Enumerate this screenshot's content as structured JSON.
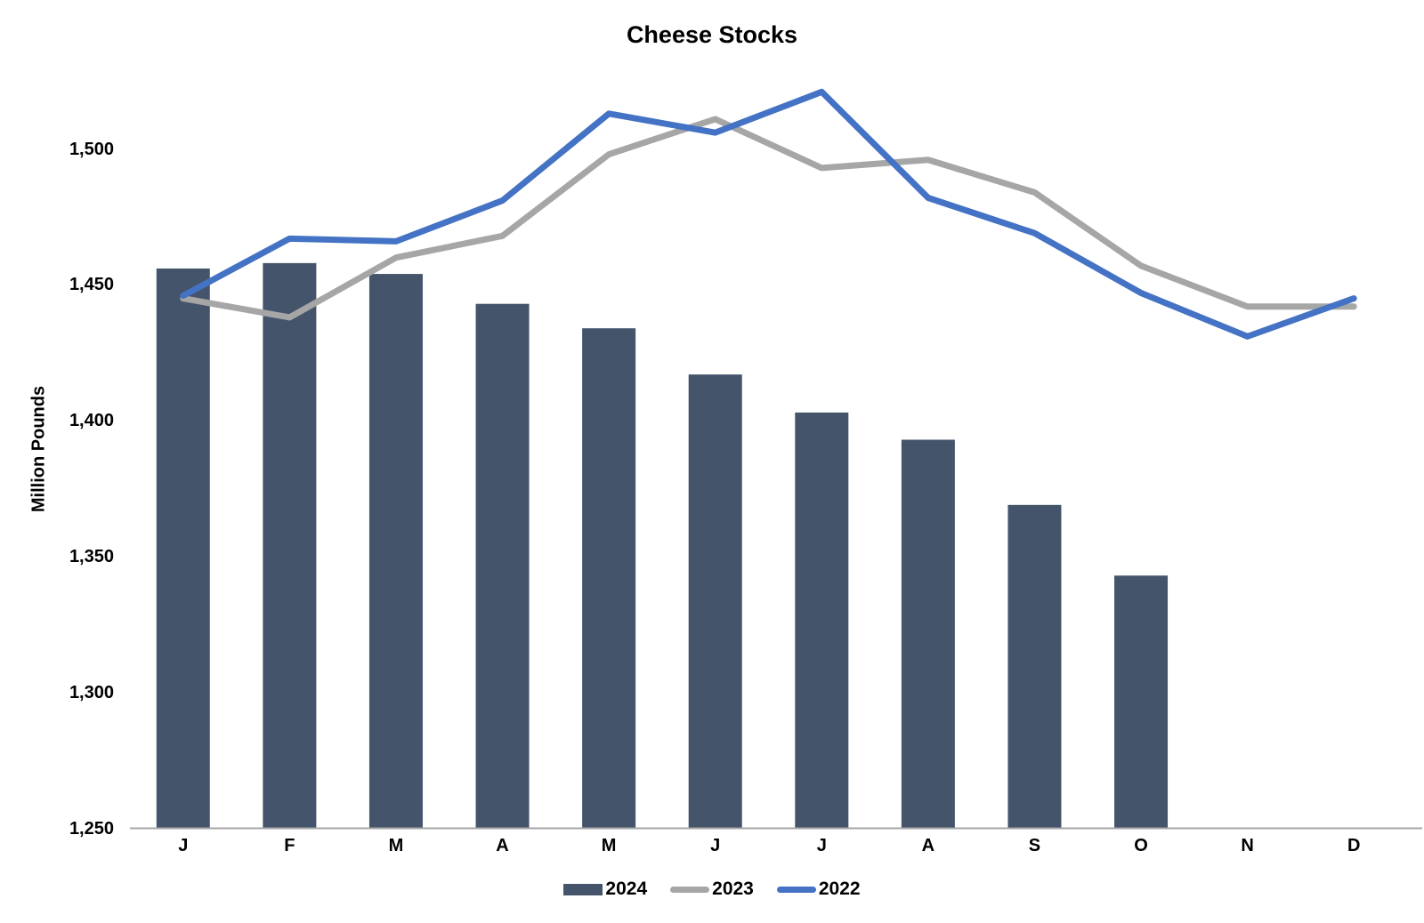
{
  "title": "Cheese Stocks",
  "chart_data": {
    "type": "bar+line combo",
    "title": "Cheese Stocks",
    "xlabel": "",
    "ylabel": "Million Pounds",
    "categories": [
      "J",
      "F",
      "M",
      "A",
      "M",
      "J",
      "J",
      "A",
      "S",
      "O",
      "N",
      "D"
    ],
    "yticks": [
      1250,
      1300,
      1350,
      1400,
      1450,
      1500
    ],
    "ytick_labels": [
      "1,250",
      "1,300",
      "1,350",
      "1,400",
      "1,450",
      "1,500"
    ],
    "ylim": [
      1250,
      1530
    ],
    "grid": "off",
    "legend_position": "bottom",
    "axis_color": "#A6A6A6",
    "series": [
      {
        "name": "2024",
        "type": "bar",
        "color": "#44546A",
        "values": [
          1456,
          1458,
          1454,
          1443,
          1434,
          1417,
          1403,
          1393,
          1369,
          1343,
          null,
          null
        ]
      },
      {
        "name": "2023",
        "type": "line",
        "color": "#A6A6A6",
        "values": [
          1445,
          1438,
          1460,
          1468,
          1498,
          1511,
          1493,
          1496,
          1484,
          1457,
          1442,
          1442
        ]
      },
      {
        "name": "2022",
        "type": "line",
        "color": "#4472C4",
        "values": [
          1446,
          1467,
          1466,
          1481,
          1513,
          1506,
          1521,
          1482,
          1469,
          1447,
          1431,
          1445
        ]
      }
    ]
  }
}
